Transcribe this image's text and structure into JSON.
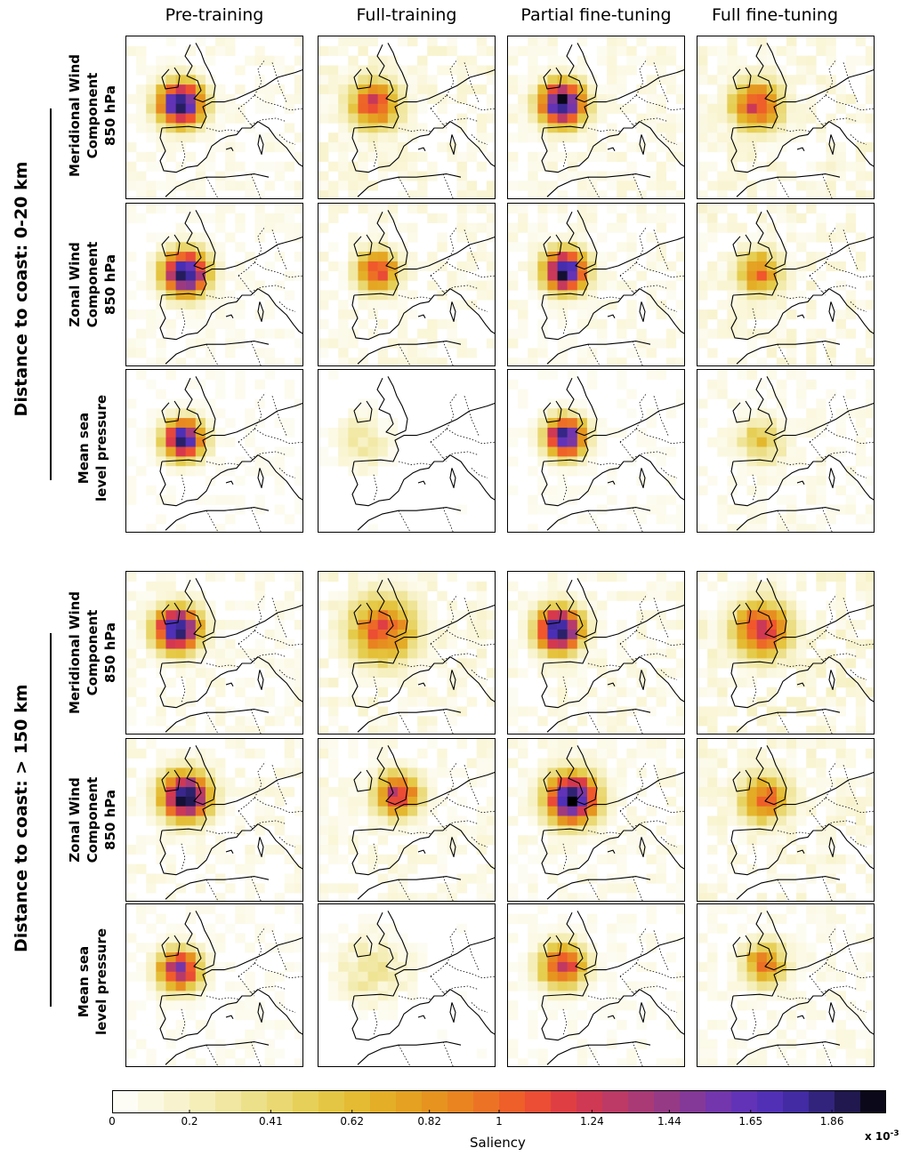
{
  "chart_data": {
    "type": "heatmap",
    "description_rows": "saliency maps over Europe",
    "column_titles": [
      "Pre-training",
      "Full-training",
      "Partial fine-tuning",
      "Full fine-tuning"
    ],
    "groups": [
      {
        "label": "Distance to coast: 0-20 km"
      },
      {
        "label": "Distance to coast: > 150 km"
      }
    ],
    "row_labels": [
      "Meridional Wind\nComponent\n850 hPa",
      "Zonal Wind\nComponent\n850 hPa",
      "Mean sea\nlevel pressure"
    ],
    "peak_values": [
      [
        [
          2.0,
          1.2,
          2.0,
          1.2
        ],
        [
          2.0,
          1.2,
          2.0,
          1.0
        ],
        [
          1.9,
          0.3,
          1.9,
          0.6
        ]
      ],
      [
        [
          2.0,
          1.1,
          2.0,
          1.3
        ],
        [
          2.0,
          1.3,
          2.0,
          1.0
        ],
        [
          1.5,
          0.3,
          1.3,
          1.0
        ]
      ]
    ],
    "colorbar": {
      "label": "Saliency",
      "multiplier": "x 10-3",
      "ticks": [
        "0",
        "0.2",
        "0.41",
        "0.62",
        "0.82",
        "1",
        "1.24",
        "1.44",
        "1.65",
        "1.86"
      ],
      "tick_values": [
        0,
        0.2,
        0.41,
        0.62,
        0.82,
        1.0,
        1.24,
        1.44,
        1.65,
        1.86
      ],
      "range": [
        0,
        2.0
      ],
      "levels": 30,
      "colors": [
        "#ffffff",
        "#faf6d8",
        "#f3ebae",
        "#ebdc7f",
        "#e5cc4c",
        "#e4b52a",
        "#e59a1f",
        "#ea7d22",
        "#f1552c",
        "#d9384a",
        "#b23a6e",
        "#8c3a8e",
        "#6a34b6",
        "#4a2fb6",
        "#2a2068",
        "#000000"
      ]
    }
  }
}
